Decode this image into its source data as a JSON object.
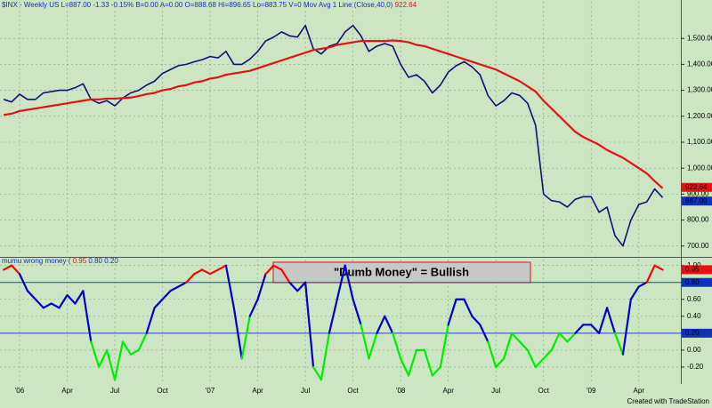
{
  "chart_data": [
    {
      "type": "line",
      "header": "$INX - Weekly  US  L=887.00  -1.33  -0.15%  B=0.00  A=0.00  O=888.68  Hi=896.65  Lo=883.75  V=0  Mov Avg 1 Line (Close,40,0)",
      "series": [
        {
          "name": "$INX",
          "color": "#10107a",
          "values": [
            1265,
            1255,
            1285,
            1265,
            1265,
            1290,
            1295,
            1300,
            1300,
            1310,
            1325,
            1265,
            1250,
            1260,
            1240,
            1270,
            1290,
            1300,
            1320,
            1335,
            1365,
            1380,
            1395,
            1400,
            1410,
            1418,
            1430,
            1425,
            1450,
            1400,
            1400,
            1420,
            1450,
            1490,
            1505,
            1525,
            1510,
            1505,
            1550,
            1460,
            1440,
            1470,
            1480,
            1525,
            1550,
            1510,
            1450,
            1470,
            1480,
            1470,
            1400,
            1350,
            1360,
            1335,
            1290,
            1320,
            1370,
            1395,
            1410,
            1390,
            1360,
            1280,
            1240,
            1260,
            1290,
            1280,
            1250,
            1165,
            900,
            875,
            870,
            850,
            880,
            890,
            890,
            830,
            850,
            740,
            700,
            800,
            860,
            870,
            920,
            887
          ]
        },
        {
          "name": "Mov Avg 1 Line",
          "color": "#e81010",
          "values": [
            1205,
            1210,
            1220,
            1225,
            1230,
            1235,
            1240,
            1245,
            1250,
            1255,
            1260,
            1265,
            1265,
            1268,
            1268,
            1270,
            1272,
            1278,
            1285,
            1290,
            1300,
            1305,
            1315,
            1320,
            1330,
            1335,
            1345,
            1350,
            1360,
            1365,
            1370,
            1375,
            1385,
            1395,
            1405,
            1415,
            1425,
            1435,
            1445,
            1455,
            1460,
            1465,
            1475,
            1480,
            1485,
            1490,
            1490,
            1490,
            1490,
            1492,
            1490,
            1485,
            1475,
            1470,
            1460,
            1450,
            1440,
            1430,
            1420,
            1410,
            1400,
            1390,
            1380,
            1365,
            1350,
            1335,
            1315,
            1295,
            1260,
            1230,
            1200,
            1170,
            1140,
            1120,
            1105,
            1090,
            1070,
            1055,
            1040,
            1020,
            1000,
            980,
            950,
            922.64
          ]
        }
      ],
      "markers": [
        {
          "value": 922.64,
          "label": "922.64",
          "color": "#e81010"
        },
        {
          "value": 887,
          "label": "887.00",
          "color": "#1030c0"
        }
      ],
      "ylim": [
        665,
        1600
      ],
      "yticks": [
        {
          "value": 700,
          "label": "700.00"
        },
        {
          "value": 800,
          "label": "800.00"
        },
        {
          "value": 900,
          "label": "900.00"
        },
        {
          "value": 1000,
          "label": "1,000.00"
        },
        {
          "value": 1100,
          "label": "1,100.00"
        },
        {
          "value": 1200,
          "label": "1,200.00"
        },
        {
          "value": 1300,
          "label": "1,300.00"
        },
        {
          "value": 1400,
          "label": "1,400.00"
        },
        {
          "value": 1500,
          "label": "1,500.00"
        }
      ],
      "grid": true
    },
    {
      "type": "oscillator",
      "title": "mumu wrong money (",
      "levels": [
        0.95,
        {
          "value": 0.8,
          "label": "0.80"
        },
        {
          "value": 0.2,
          "label": "0.20"
        }
      ],
      "level_colors": [
        "#e81010",
        "#1030c0",
        "#1030c0"
      ],
      "colors": {
        "above": "#ff0000",
        "mid": "#0000cc",
        "below": "#00ee00"
      },
      "annotation": "\"Dumb Money\" = Bullish",
      "categories": [
        null,
        null,
        "'06",
        null,
        null,
        null,
        null,
        null,
        "Apr",
        null,
        null,
        null,
        null,
        null,
        "Jul",
        null,
        null,
        null,
        null,
        null,
        "Oct",
        null,
        null,
        null,
        null,
        null,
        "'07",
        null,
        null,
        null,
        null,
        null,
        "Apr",
        null,
        null,
        null,
        null,
        null,
        "Jul",
        null,
        null,
        null,
        null,
        null,
        "Oct",
        null,
        null,
        null,
        null,
        null,
        "'08",
        null,
        null,
        null,
        null,
        null,
        "Apr",
        null,
        null,
        null,
        null,
        null,
        "Jul",
        null,
        null,
        null,
        null,
        null,
        "Oct",
        null,
        null,
        null,
        null,
        null,
        "'09",
        null,
        null,
        null,
        null,
        null,
        "Apr",
        null,
        null,
        null
      ],
      "series": [
        {
          "name": "mumu wrong money",
          "values": [
            0.95,
            1.0,
            0.9,
            0.7,
            0.6,
            0.5,
            0.55,
            0.5,
            0.65,
            0.55,
            0.7,
            0.1,
            -0.2,
            0.0,
            -0.35,
            0.1,
            -0.05,
            0.0,
            0.2,
            0.5,
            0.6,
            0.7,
            0.75,
            0.8,
            0.9,
            0.95,
            0.9,
            0.95,
            1.0,
            0.5,
            -0.1,
            0.4,
            0.6,
            0.9,
            1.0,
            0.95,
            0.8,
            0.7,
            0.8,
            -0.2,
            -0.35,
            0.2,
            0.6,
            1.0,
            0.6,
            0.3,
            -0.1,
            0.2,
            0.4,
            0.2,
            -0.1,
            -0.3,
            0.0,
            0.0,
            -0.3,
            -0.2,
            0.3,
            0.6,
            0.6,
            0.4,
            0.3,
            0.1,
            -0.2,
            -0.1,
            0.2,
            0.1,
            0.0,
            -0.2,
            -0.1,
            0.0,
            0.2,
            0.1,
            0.2,
            0.3,
            0.3,
            0.2,
            0.5,
            0.2,
            -0.05,
            0.6,
            0.75,
            0.8,
            1.0,
            0.95
          ]
        }
      ],
      "ylim": [
        -0.4,
        1.07
      ],
      "yticks": [
        {
          "value": -0.2,
          "label": "-0.20"
        },
        {
          "value": 0,
          "label": "0.00"
        },
        {
          "value": 0.2,
          "label": "0.20"
        },
        {
          "value": 0.4,
          "label": "0.40"
        },
        {
          "value": 0.6,
          "label": "0.60"
        },
        {
          "value": 0.8,
          "label": "0.80"
        },
        {
          "value": 1,
          "label": "1.00"
        }
      ],
      "grid": true,
      "footer": "Created with TradeStation"
    }
  ]
}
